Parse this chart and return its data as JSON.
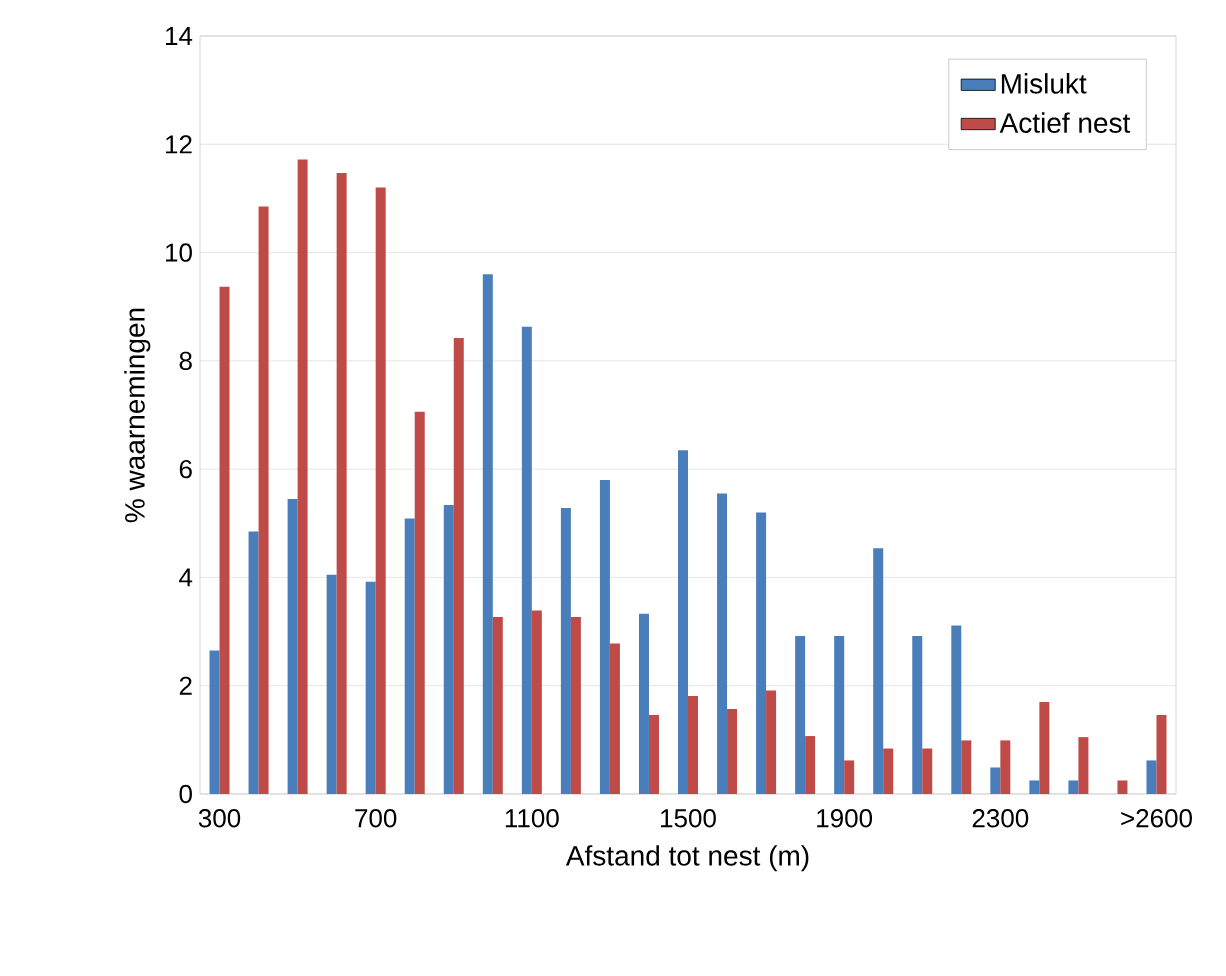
{
  "chart_data": {
    "type": "bar",
    "xlabel": "Afstand tot nest (m)",
    "ylabel": "% waarnemingen",
    "categories": [
      "300",
      null,
      null,
      null,
      "700",
      null,
      null,
      null,
      "1100",
      null,
      null,
      null,
      "1500",
      null,
      null,
      null,
      "1900",
      null,
      null,
      null,
      "2300",
      null,
      null,
      null,
      ">2600"
    ],
    "series": [
      {
        "name": "Mislukt",
        "color": "#4a7ebb",
        "values": [
          2.65,
          4.85,
          5.45,
          4.05,
          3.92,
          5.09,
          5.34,
          9.6,
          8.63,
          5.28,
          5.8,
          3.33,
          6.35,
          5.55,
          5.2,
          2.92,
          2.92,
          4.54,
          2.92,
          3.11,
          0.49,
          0.25,
          0.25,
          0,
          0.62
        ]
      },
      {
        "name": "Actief nest",
        "color": "#be4b48",
        "values": [
          9.37,
          10.85,
          11.72,
          11.47,
          11.2,
          7.06,
          8.42,
          3.27,
          3.39,
          3.27,
          2.78,
          1.46,
          1.81,
          1.57,
          1.91,
          1.07,
          0.62,
          0.84,
          0.84,
          0.99,
          0.99,
          1.7,
          1.05,
          0.25,
          1.46
        ]
      }
    ],
    "ylim": [
      0,
      14
    ],
    "yticks": [
      0,
      2,
      4,
      6,
      8,
      10,
      12,
      14
    ],
    "grid": "y",
    "legend": "top right"
  }
}
